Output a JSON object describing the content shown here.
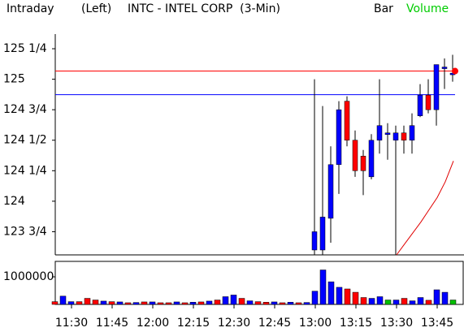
{
  "header": {
    "mode": "Intraday",
    "side": "(Left)",
    "symbol": "INTC - INTEL CORP  (3-Min)",
    "chart_style": "Bar",
    "study": "Volume"
  },
  "chart_data": {
    "type": "candlestick",
    "categories": [
      null,
      null,
      "11:30",
      null,
      null,
      null,
      null,
      "11:45",
      null,
      null,
      null,
      null,
      "12:00",
      null,
      null,
      null,
      null,
      "12:15",
      null,
      null,
      null,
      null,
      "12:30",
      null,
      null,
      null,
      null,
      "12:45",
      null,
      null,
      null,
      null,
      "13:00",
      null,
      null,
      null,
      null,
      "13:15",
      null,
      null,
      null,
      null,
      "13:30",
      null,
      null,
      null,
      null,
      "13:45",
      null,
      null
    ],
    "open": [
      null,
      null,
      null,
      null,
      null,
      null,
      null,
      null,
      null,
      null,
      null,
      null,
      null,
      null,
      null,
      null,
      null,
      null,
      null,
      null,
      null,
      null,
      null,
      null,
      null,
      null,
      null,
      null,
      null,
      null,
      null,
      null,
      123.6,
      123.6,
      123.86,
      124.3,
      124.82,
      124.5,
      124.37,
      124.2,
      124.5,
      124.56,
      124.5,
      124.56,
      124.5,
      124.7,
      124.87,
      124.75,
      125.1,
      125.05
    ],
    "high": [
      null,
      null,
      null,
      null,
      null,
      null,
      null,
      null,
      null,
      null,
      null,
      null,
      null,
      null,
      null,
      null,
      null,
      null,
      null,
      null,
      null,
      null,
      null,
      null,
      null,
      null,
      null,
      null,
      null,
      null,
      null,
      null,
      125,
      124.78,
      124.45,
      124.82,
      124.86,
      124.58,
      124.42,
      124.55,
      125,
      124.64,
      124.62,
      124.62,
      124.72,
      124.96,
      125,
      125.12,
      125.17,
      125.2
    ],
    "low": [
      null,
      null,
      null,
      null,
      null,
      null,
      null,
      null,
      null,
      null,
      null,
      null,
      null,
      null,
      null,
      null,
      null,
      null,
      null,
      null,
      null,
      null,
      null,
      null,
      null,
      null,
      null,
      null,
      null,
      null,
      null,
      null,
      123.56,
      123.56,
      123.66,
      124.06,
      124.45,
      124.2,
      124.05,
      124.18,
      124.39,
      124.34,
      123.56,
      124.39,
      124.39,
      124.69,
      124.72,
      124.62,
      124.92,
      124.98
    ],
    "close": [
      null,
      null,
      null,
      null,
      null,
      null,
      null,
      null,
      null,
      null,
      null,
      null,
      null,
      null,
      null,
      null,
      null,
      null,
      null,
      null,
      null,
      null,
      null,
      null,
      null,
      null,
      null,
      null,
      null,
      null,
      null,
      null,
      123.75,
      123.87,
      124.3,
      124.75,
      124.5,
      124.25,
      124.25,
      124.5,
      124.62,
      124.56,
      124.56,
      124.5,
      124.62,
      124.87,
      124.75,
      125.12,
      125.1,
      125.05
    ],
    "up_color": "#0000ff",
    "down_color": "#ff0000",
    "ylim": [
      123.56,
      125.37
    ],
    "yticks": [
      {
        "value": 123.75,
        "label": "123 3/4"
      },
      124,
      {
        "value": 124.25,
        "label": "124 1/4"
      },
      {
        "value": 124.5,
        "label": "124 1/2"
      },
      {
        "value": 124.75,
        "label": "124 3/4"
      },
      125,
      {
        "value": 125.25,
        "label": "125 1/4"
      }
    ],
    "reference_lines": [
      {
        "value": 125.067,
        "color": "#ff0000"
      },
      {
        "value": 124.873,
        "color": "#0000ff"
      }
    ],
    "overlay": {
      "color": "#e00000",
      "values": [
        null,
        null,
        null,
        null,
        null,
        null,
        null,
        null,
        null,
        null,
        null,
        null,
        null,
        null,
        null,
        null,
        null,
        null,
        null,
        null,
        null,
        null,
        null,
        null,
        null,
        null,
        null,
        null,
        null,
        null,
        null,
        null,
        null,
        null,
        null,
        null,
        null,
        null,
        null,
        null,
        null,
        null,
        123.56,
        123.65,
        123.74,
        123.83,
        123.93,
        124.03,
        124.16,
        124.33
      ]
    },
    "volume": {
      "values": [
        100000,
        300000,
        100000,
        100000,
        220000,
        160000,
        120000,
        100000,
        90000,
        60000,
        70000,
        90000,
        90000,
        60000,
        60000,
        90000,
        60000,
        80000,
        90000,
        120000,
        160000,
        280000,
        340000,
        220000,
        130000,
        100000,
        80000,
        90000,
        60000,
        80000,
        60000,
        70000,
        480000,
        1250000,
        820000,
        620000,
        560000,
        440000,
        250000,
        220000,
        280000,
        160000,
        160000,
        220000,
        130000,
        250000,
        150000,
        530000,
        440000,
        160000
      ],
      "colors": [
        "#ff0000",
        "#0000ff",
        "#0000ff",
        "#ff0000",
        "#ff0000",
        "#ff0000",
        "#0000ff",
        "#ff0000",
        "#0000ff",
        "#ff0000",
        "#0000ff",
        "#ff0000",
        "#0000ff",
        "#ff0000",
        "#ff0000",
        "#0000ff",
        "#ff0000",
        "#0000ff",
        "#ff0000",
        "#0000ff",
        "#ff0000",
        "#0000ff",
        "#0000ff",
        "#ff0000",
        "#0000ff",
        "#ff0000",
        "#ff0000",
        "#0000ff",
        "#ff0000",
        "#0000ff",
        "#ff0000",
        "#0000ff",
        "#0000ff",
        "#0000ff",
        "#0000ff",
        "#0000ff",
        "#ff0000",
        "#ff0000",
        "#ff0000",
        "#0000ff",
        "#0000ff",
        "#00c000",
        "#0000ff",
        "#ff0000",
        "#0000ff",
        "#0000ff",
        "#ff0000",
        "#0000ff",
        "#0000ff",
        "#00c000"
      ],
      "ylim": [
        0,
        1560000
      ],
      "yticks": [
        1000000
      ]
    }
  }
}
